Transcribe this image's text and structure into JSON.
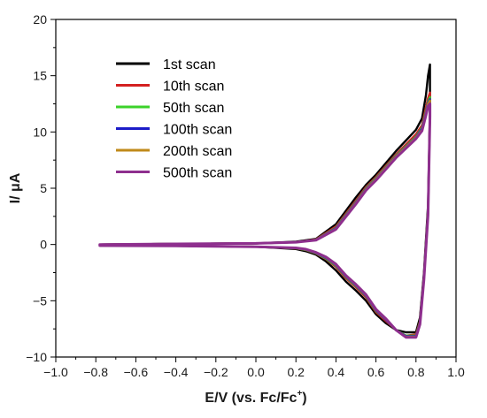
{
  "chart_data": {
    "type": "line",
    "xlabel_main": "E/V (vs. Fc/Fc",
    "xlabel_sup": "+",
    "xlabel_end": ")",
    "ylabel": "I/ μA",
    "xlim": [
      -1.0,
      1.0
    ],
    "ylim": [
      -10,
      20
    ],
    "xticks": [
      -1.0,
      -0.8,
      -0.6,
      -0.4,
      -0.2,
      0.0,
      0.2,
      0.4,
      0.6,
      0.8,
      1.0
    ],
    "xtick_labels": [
      "−1.0",
      "−0.8",
      "−0.6",
      "−0.4",
      "−0.2",
      "0.0",
      "0.2",
      "0.4",
      "0.6",
      "0.8",
      "1.0"
    ],
    "yticks": [
      -10,
      -5,
      0,
      5,
      10,
      15,
      20
    ],
    "ytick_labels": [
      "−10",
      "−5",
      "0",
      "5",
      "10",
      "15",
      "20"
    ],
    "grid": false,
    "legend_position": "top-left",
    "series": [
      {
        "name": "1st scan",
        "color": "#000000",
        "x": [
          -0.78,
          -0.4,
          0.0,
          0.2,
          0.3,
          0.4,
          0.5,
          0.55,
          0.6,
          0.7,
          0.8,
          0.83,
          0.85,
          0.86,
          0.87,
          0.87,
          0.86,
          0.84,
          0.82,
          0.8,
          0.75,
          0.7,
          0.65,
          0.6,
          0.55,
          0.5,
          0.45,
          0.4,
          0.35,
          0.3,
          0.25,
          0.2,
          0.0,
          -0.4,
          -0.78
        ],
        "y": [
          0.0,
          0.05,
          0.1,
          0.25,
          0.5,
          1.8,
          4.2,
          5.3,
          6.2,
          8.3,
          10.2,
          11.2,
          13.3,
          15.0,
          16.0,
          12.0,
          3.5,
          -2.5,
          -6.5,
          -7.8,
          -7.8,
          -7.6,
          -7.0,
          -6.2,
          -5.0,
          -4.1,
          -3.3,
          -2.3,
          -1.5,
          -0.9,
          -0.6,
          -0.4,
          -0.2,
          -0.13,
          -0.1
        ]
      },
      {
        "name": "10th scan",
        "color": "#d42020",
        "x": [
          -0.78,
          -0.4,
          0.0,
          0.2,
          0.3,
          0.4,
          0.5,
          0.55,
          0.6,
          0.7,
          0.8,
          0.83,
          0.85,
          0.86,
          0.87,
          0.87,
          0.86,
          0.84,
          0.82,
          0.8,
          0.75,
          0.7,
          0.65,
          0.6,
          0.55,
          0.5,
          0.45,
          0.4,
          0.35,
          0.3,
          0.25,
          0.2,
          0.0,
          -0.4,
          -0.78
        ],
        "y": [
          0.0,
          0.05,
          0.1,
          0.2,
          0.45,
          1.6,
          3.9,
          5.1,
          6.0,
          8.0,
          9.8,
          10.6,
          12.2,
          13.0,
          13.5,
          11.8,
          3.0,
          -2.8,
          -6.8,
          -8.0,
          -8.1,
          -7.6,
          -6.8,
          -6.0,
          -4.7,
          -3.8,
          -3.0,
          -2.0,
          -1.3,
          -0.8,
          -0.5,
          -0.35,
          -0.2,
          -0.12,
          -0.1
        ]
      },
      {
        "name": "50th scan",
        "color": "#3bd22a",
        "x": [
          -0.78,
          -0.4,
          0.0,
          0.2,
          0.3,
          0.4,
          0.5,
          0.55,
          0.6,
          0.7,
          0.8,
          0.83,
          0.85,
          0.86,
          0.87,
          0.87,
          0.86,
          0.84,
          0.82,
          0.8,
          0.75,
          0.7,
          0.65,
          0.6,
          0.55,
          0.5,
          0.45,
          0.4,
          0.35,
          0.3,
          0.25,
          0.2,
          0.0,
          -0.4,
          -0.78
        ],
        "y": [
          0.0,
          0.05,
          0.1,
          0.2,
          0.42,
          1.5,
          3.8,
          5.0,
          5.9,
          7.9,
          9.6,
          10.4,
          11.9,
          12.7,
          13.1,
          11.7,
          2.9,
          -2.9,
          -6.9,
          -8.1,
          -8.1,
          -7.6,
          -6.7,
          -5.9,
          -4.6,
          -3.7,
          -2.9,
          -1.9,
          -1.25,
          -0.78,
          -0.48,
          -0.33,
          -0.2,
          -0.12,
          -0.1
        ]
      },
      {
        "name": "100th scan",
        "color": "#1c1cc8",
        "x": [
          -0.78,
          -0.4,
          0.0,
          0.2,
          0.3,
          0.4,
          0.5,
          0.55,
          0.6,
          0.7,
          0.8,
          0.83,
          0.85,
          0.86,
          0.87,
          0.87,
          0.86,
          0.84,
          0.82,
          0.8,
          0.75,
          0.7,
          0.65,
          0.6,
          0.55,
          0.5,
          0.45,
          0.4,
          0.35,
          0.3,
          0.25,
          0.2,
          0.0,
          -0.4,
          -0.78
        ],
        "y": [
          0.0,
          0.05,
          0.1,
          0.2,
          0.41,
          1.45,
          3.75,
          4.95,
          5.85,
          7.85,
          9.55,
          10.3,
          11.8,
          12.6,
          12.9,
          11.6,
          2.8,
          -2.95,
          -6.95,
          -8.15,
          -8.15,
          -7.6,
          -6.7,
          -5.85,
          -4.55,
          -3.65,
          -2.85,
          -1.85,
          -1.2,
          -0.75,
          -0.46,
          -0.32,
          -0.2,
          -0.12,
          -0.1
        ]
      },
      {
        "name": "200th scan",
        "color": "#c08a1a",
        "x": [
          -0.78,
          -0.4,
          0.0,
          0.2,
          0.3,
          0.4,
          0.5,
          0.55,
          0.6,
          0.7,
          0.8,
          0.83,
          0.85,
          0.86,
          0.87,
          0.87,
          0.86,
          0.84,
          0.82,
          0.8,
          0.75,
          0.7,
          0.65,
          0.6,
          0.55,
          0.5,
          0.45,
          0.4,
          0.35,
          0.3,
          0.25,
          0.2,
          0.0,
          -0.4,
          -0.78
        ],
        "y": [
          0.0,
          0.05,
          0.1,
          0.2,
          0.4,
          1.4,
          3.7,
          4.9,
          5.8,
          7.8,
          9.5,
          10.2,
          11.7,
          12.5,
          12.8,
          11.5,
          2.7,
          -3.0,
          -7.0,
          -8.2,
          -8.2,
          -7.6,
          -6.65,
          -5.8,
          -4.5,
          -3.6,
          -2.8,
          -1.8,
          -1.15,
          -0.72,
          -0.44,
          -0.31,
          -0.2,
          -0.12,
          -0.1
        ]
      },
      {
        "name": "500th scan",
        "color": "#8e2f8e",
        "x": [
          -0.78,
          -0.4,
          0.0,
          0.2,
          0.3,
          0.4,
          0.5,
          0.55,
          0.6,
          0.7,
          0.8,
          0.83,
          0.85,
          0.86,
          0.87,
          0.87,
          0.86,
          0.84,
          0.82,
          0.8,
          0.75,
          0.7,
          0.65,
          0.6,
          0.55,
          0.5,
          0.45,
          0.4,
          0.35,
          0.3,
          0.25,
          0.2,
          0.0,
          -0.4,
          -0.78
        ],
        "y": [
          0.0,
          0.05,
          0.1,
          0.2,
          0.38,
          1.35,
          3.6,
          4.8,
          5.7,
          7.7,
          9.4,
          10.1,
          11.5,
          12.3,
          12.5,
          11.4,
          2.6,
          -3.1,
          -7.1,
          -8.25,
          -8.25,
          -7.6,
          -6.6,
          -5.75,
          -4.45,
          -3.55,
          -2.75,
          -1.75,
          -1.1,
          -0.7,
          -0.42,
          -0.3,
          -0.2,
          -0.12,
          -0.1
        ]
      }
    ]
  }
}
